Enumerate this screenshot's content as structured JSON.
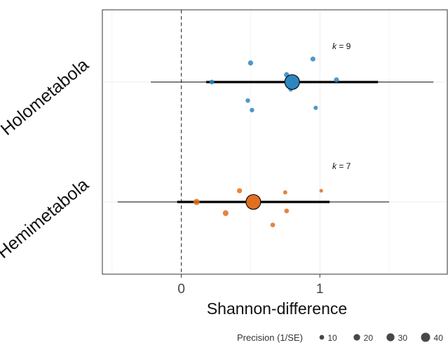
{
  "chart_data": {
    "type": "scatter",
    "subtype": "orchard-plot",
    "xlabel": "Shannon-difference",
    "ylabel": "",
    "xlim": [
      -0.57,
      1.92
    ],
    "x_ticks": [
      0,
      1
    ],
    "x_tick_labels": [
      "0",
      "1"
    ],
    "reference_line": 0,
    "grid": true,
    "legend": {
      "title": "Precision (1/SE)",
      "position": "bottom-right",
      "values": [
        10,
        20,
        30,
        40
      ],
      "labels": [
        "10",
        "20",
        "30",
        "40"
      ]
    },
    "series": [
      {
        "category": "Holometabola",
        "k_label": "k = 9",
        "k_italic": "k",
        "k_rest": " = 9",
        "color": "#2E86C1",
        "estimate": 0.8,
        "ci": [
          0.18,
          1.42
        ],
        "pi": [
          -0.22,
          1.82
        ],
        "points": [
          {
            "x": 0.5,
            "offset": 0.34,
            "precision": 12
          },
          {
            "x": 0.95,
            "offset": 0.41,
            "precision": 11
          },
          {
            "x": 0.76,
            "offset": 0.13,
            "precision": 12
          },
          {
            "x": 0.22,
            "offset": 0.0,
            "precision": 10
          },
          {
            "x": 1.12,
            "offset": 0.04,
            "precision": 11
          },
          {
            "x": 0.79,
            "offset": -0.13,
            "precision": 9
          },
          {
            "x": 0.48,
            "offset": -0.33,
            "precision": 9
          },
          {
            "x": 0.51,
            "offset": -0.5,
            "precision": 9
          },
          {
            "x": 0.97,
            "offset": -0.46,
            "precision": 8
          }
        ]
      },
      {
        "category": "Hemimetabola",
        "k_label": "k = 7",
        "k_italic": "k",
        "k_rest": " = 7",
        "color": "#E07020",
        "estimate": 0.52,
        "ci": [
          -0.03,
          1.07
        ],
        "pi": [
          -0.46,
          1.5
        ],
        "points": [
          {
            "x": 0.42,
            "offset": 0.2,
            "precision": 12
          },
          {
            "x": 0.75,
            "offset": 0.17,
            "precision": 8
          },
          {
            "x": 1.01,
            "offset": 0.2,
            "precision": 6
          },
          {
            "x": 0.11,
            "offset": 0.0,
            "precision": 18
          },
          {
            "x": 0.32,
            "offset": -0.2,
            "precision": 15
          },
          {
            "x": 0.76,
            "offset": -0.16,
            "precision": 10
          },
          {
            "x": 0.66,
            "offset": -0.41,
            "precision": 10
          }
        ]
      }
    ]
  }
}
